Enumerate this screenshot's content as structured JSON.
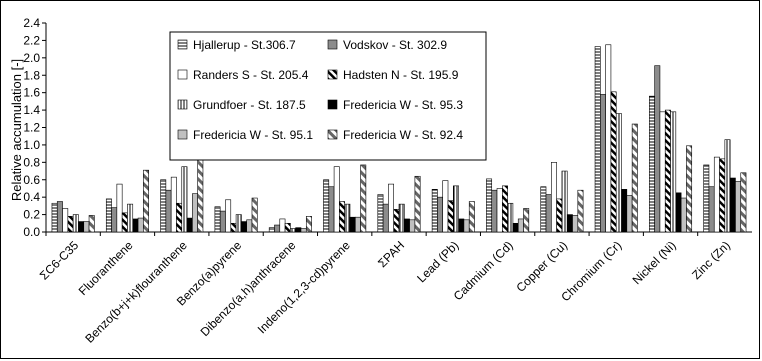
{
  "chart_data": {
    "type": "bar",
    "ylabel": "Relative accumulation [-]",
    "ylim": [
      0,
      2.4
    ],
    "ytick_step": 0.2,
    "grid": false,
    "legend_placement": "top-left",
    "categories": [
      "ΣC6-C35",
      "Fluoranthene",
      "Benzo(b+j+k)flouranthene",
      "Benzo(a)pyrene",
      "Dibenzo(a,h)anthracene",
      "Indeno(1,2,3-cd)pyrene",
      "ΣPAH",
      "Lead (Pb)",
      "Cadmium (Cd)",
      "Copper (Cu)",
      "Chromium (Cr)",
      "Nickel (Ni)",
      "Zinc (Zn)"
    ],
    "series": [
      {
        "name": "Hjallerup - St.306.7",
        "pattern": "hlines",
        "values": [
          0.33,
          0.38,
          0.6,
          0.29,
          0.05,
          0.6,
          0.43,
          0.49,
          0.61,
          0.52,
          2.13,
          1.56,
          0.77
        ]
      },
      {
        "name": "Vodskov - St. 302.9",
        "pattern": "gray",
        "values": [
          0.35,
          0.28,
          0.48,
          0.24,
          0.08,
          0.52,
          0.32,
          0.4,
          0.48,
          0.43,
          1.58,
          1.91,
          0.52
        ]
      },
      {
        "name": "Randers S - St. 205.4",
        "pattern": "white",
        "values": [
          0.27,
          0.55,
          0.63,
          0.37,
          0.15,
          0.75,
          0.55,
          0.59,
          0.5,
          0.8,
          2.15,
          1.38,
          0.86
        ]
      },
      {
        "name": "Hadsten N - St. 195.9",
        "pattern": "diag",
        "values": [
          0.18,
          0.22,
          0.33,
          0.1,
          0.1,
          0.35,
          0.26,
          0.36,
          0.53,
          0.38,
          1.61,
          1.4,
          0.84
        ]
      },
      {
        "name": "Grundfoer - St. 187.5",
        "pattern": "vlines",
        "values": [
          0.2,
          0.32,
          0.75,
          0.2,
          0.04,
          0.32,
          0.32,
          0.53,
          0.33,
          0.7,
          1.36,
          1.38,
          1.06
        ]
      },
      {
        "name": "Fredericia W - St. 95.3",
        "pattern": "black",
        "values": [
          0.12,
          0.15,
          0.16,
          0.12,
          0.05,
          0.17,
          0.15,
          0.15,
          0.1,
          0.2,
          0.49,
          0.45,
          0.62
        ]
      },
      {
        "name": "Fredericia W - St. 95.1",
        "pattern": "lightgray",
        "values": [
          0.12,
          0.16,
          0.44,
          0.14,
          0.04,
          0.17,
          0.14,
          0.14,
          0.15,
          0.19,
          0.42,
          0.39,
          0.58
        ]
      },
      {
        "name": "Fredericia W - St. 92.4",
        "pattern": "bigdiag",
        "values": [
          0.19,
          0.71,
          0.86,
          0.39,
          0.18,
          0.77,
          0.64,
          0.35,
          0.27,
          0.48,
          1.24,
          0.99,
          0.68
        ]
      }
    ]
  }
}
